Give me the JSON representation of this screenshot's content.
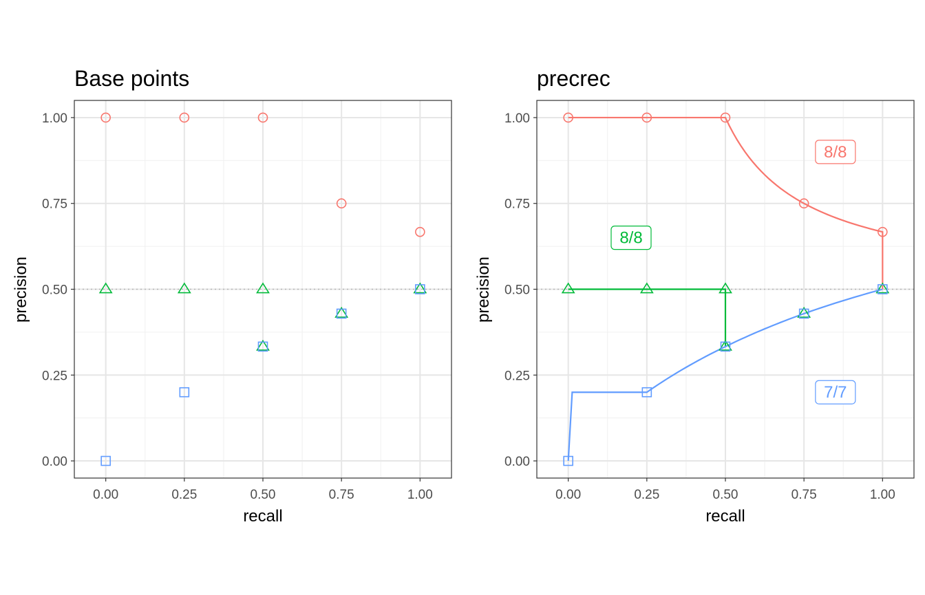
{
  "chart_data": [
    {
      "type": "scatter",
      "title": "Base points",
      "xlabel": "recall",
      "ylabel": "precision",
      "xlim": [
        -0.1,
        1.1
      ],
      "ylim": [
        -0.05,
        1.05
      ],
      "x_ticks": [
        "0.00",
        "0.25",
        "0.50",
        "0.75",
        "1.00"
      ],
      "y_ticks": [
        "0.00",
        "0.25",
        "0.50",
        "0.75",
        "1.00"
      ],
      "grid": true,
      "reference_line": {
        "y": 0.5,
        "style": "dotted"
      },
      "series": [
        {
          "shape": "circle",
          "color": "#F8766D",
          "points": [
            [
              0,
              1.0
            ],
            [
              0.25,
              1.0
            ],
            [
              0.5,
              1.0
            ],
            [
              0.75,
              0.75
            ],
            [
              1.0,
              0.667
            ]
          ]
        },
        {
          "shape": "triangle",
          "color": "#00BA38",
          "points": [
            [
              0,
              0.5
            ],
            [
              0.25,
              0.5
            ],
            [
              0.5,
              0.5
            ],
            [
              0.5,
              0.333
            ],
            [
              0.75,
              0.429
            ],
            [
              1.0,
              0.5
            ]
          ]
        },
        {
          "shape": "square",
          "color": "#619CFF",
          "points": [
            [
              0,
              0.0
            ],
            [
              0.25,
              0.2
            ],
            [
              0.5,
              0.333
            ],
            [
              0.75,
              0.429
            ],
            [
              1.0,
              0.5
            ]
          ]
        }
      ]
    },
    {
      "type": "line",
      "title": "precrec",
      "xlabel": "recall",
      "ylabel": "precision",
      "xlim": [
        -0.1,
        1.1
      ],
      "ylim": [
        -0.05,
        1.05
      ],
      "x_ticks": [
        "0.00",
        "0.25",
        "0.50",
        "0.75",
        "1.00"
      ],
      "y_ticks": [
        "0.00",
        "0.25",
        "0.50",
        "0.75",
        "1.00"
      ],
      "grid": true,
      "reference_line": {
        "y": 0.5,
        "style": "dotted"
      },
      "series": [
        {
          "shape": "circle",
          "color": "#F8766D",
          "curve": "interp",
          "points": [
            [
              0,
              1.0
            ],
            [
              0.25,
              1.0
            ],
            [
              0.5,
              1.0
            ],
            [
              0.75,
              0.75
            ],
            [
              1.0,
              0.667
            ]
          ],
          "line": [
            [
              0,
              1.0
            ],
            [
              0.5,
              1.0
            ],
            [
              0.75,
              0.75
            ],
            [
              1.0,
              0.667
            ],
            [
              1.0,
              0.5
            ]
          ],
          "label": {
            "text": "8/8",
            "x": 0.85,
            "y": 0.9
          }
        },
        {
          "shape": "triangle",
          "color": "#00BA38",
          "curve": "step",
          "points": [
            [
              0,
              0.5
            ],
            [
              0.25,
              0.5
            ],
            [
              0.5,
              0.5
            ],
            [
              0.5,
              0.333
            ],
            [
              0.75,
              0.429
            ],
            [
              1.0,
              0.5
            ]
          ],
          "line": [
            [
              0,
              0.5
            ],
            [
              0.5,
              0.5
            ],
            [
              0.5,
              0.333
            ]
          ],
          "label": {
            "text": "8/8",
            "x": 0.2,
            "y": 0.65
          }
        },
        {
          "shape": "square",
          "color": "#619CFF",
          "curve": "interp",
          "points": [
            [
              0,
              0.0
            ],
            [
              0.25,
              0.2
            ],
            [
              0.5,
              0.333
            ],
            [
              0.75,
              0.429
            ],
            [
              1.0,
              0.5
            ]
          ],
          "line": [
            [
              0,
              0.0
            ],
            [
              0.25,
              0.2
            ],
            [
              0.5,
              0.333
            ],
            [
              0.75,
              0.429
            ],
            [
              1.0,
              0.5
            ]
          ],
          "label": {
            "text": "7/7",
            "x": 0.85,
            "y": 0.2
          }
        }
      ]
    }
  ]
}
